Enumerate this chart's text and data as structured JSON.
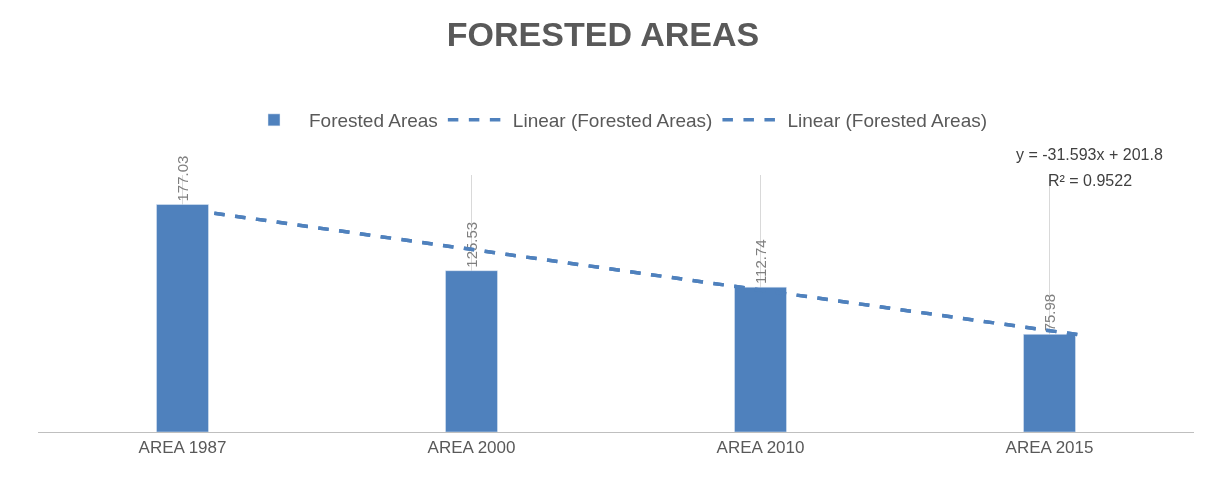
{
  "chart_data": {
    "type": "bar",
    "title": "FORESTED AREAS",
    "categories": [
      "AREA 1987",
      "AREA 2000",
      "AREA 2010",
      "AREA 2015"
    ],
    "series": [
      {
        "name": "Forested Areas",
        "color": "#4f81bd",
        "values": [
          177.03,
          125.53,
          112.74,
          75.98
        ],
        "value_labels": [
          "177.03",
          "125.53",
          "112.74",
          "75.98"
        ]
      },
      {
        "name": "Linear (Forested Areas)",
        "type": "line",
        "color": "#4f81bd",
        "line_style": "dashed",
        "values": [
          170.2,
          138.6,
          107.0,
          75.4
        ]
      },
      {
        "name": "Linear (Forested Areas)",
        "type": "line",
        "color": "#4f81bd",
        "line_style": "dashed",
        "values": [
          170.2,
          138.6,
          107.0,
          75.4
        ]
      }
    ],
    "ylim": [
      0,
      200
    ],
    "tick_labels": "x",
    "grid": "x",
    "legend": "top",
    "annotations": [
      "y = -31.593x + 201.8",
      "R² = 0.9522"
    ]
  }
}
